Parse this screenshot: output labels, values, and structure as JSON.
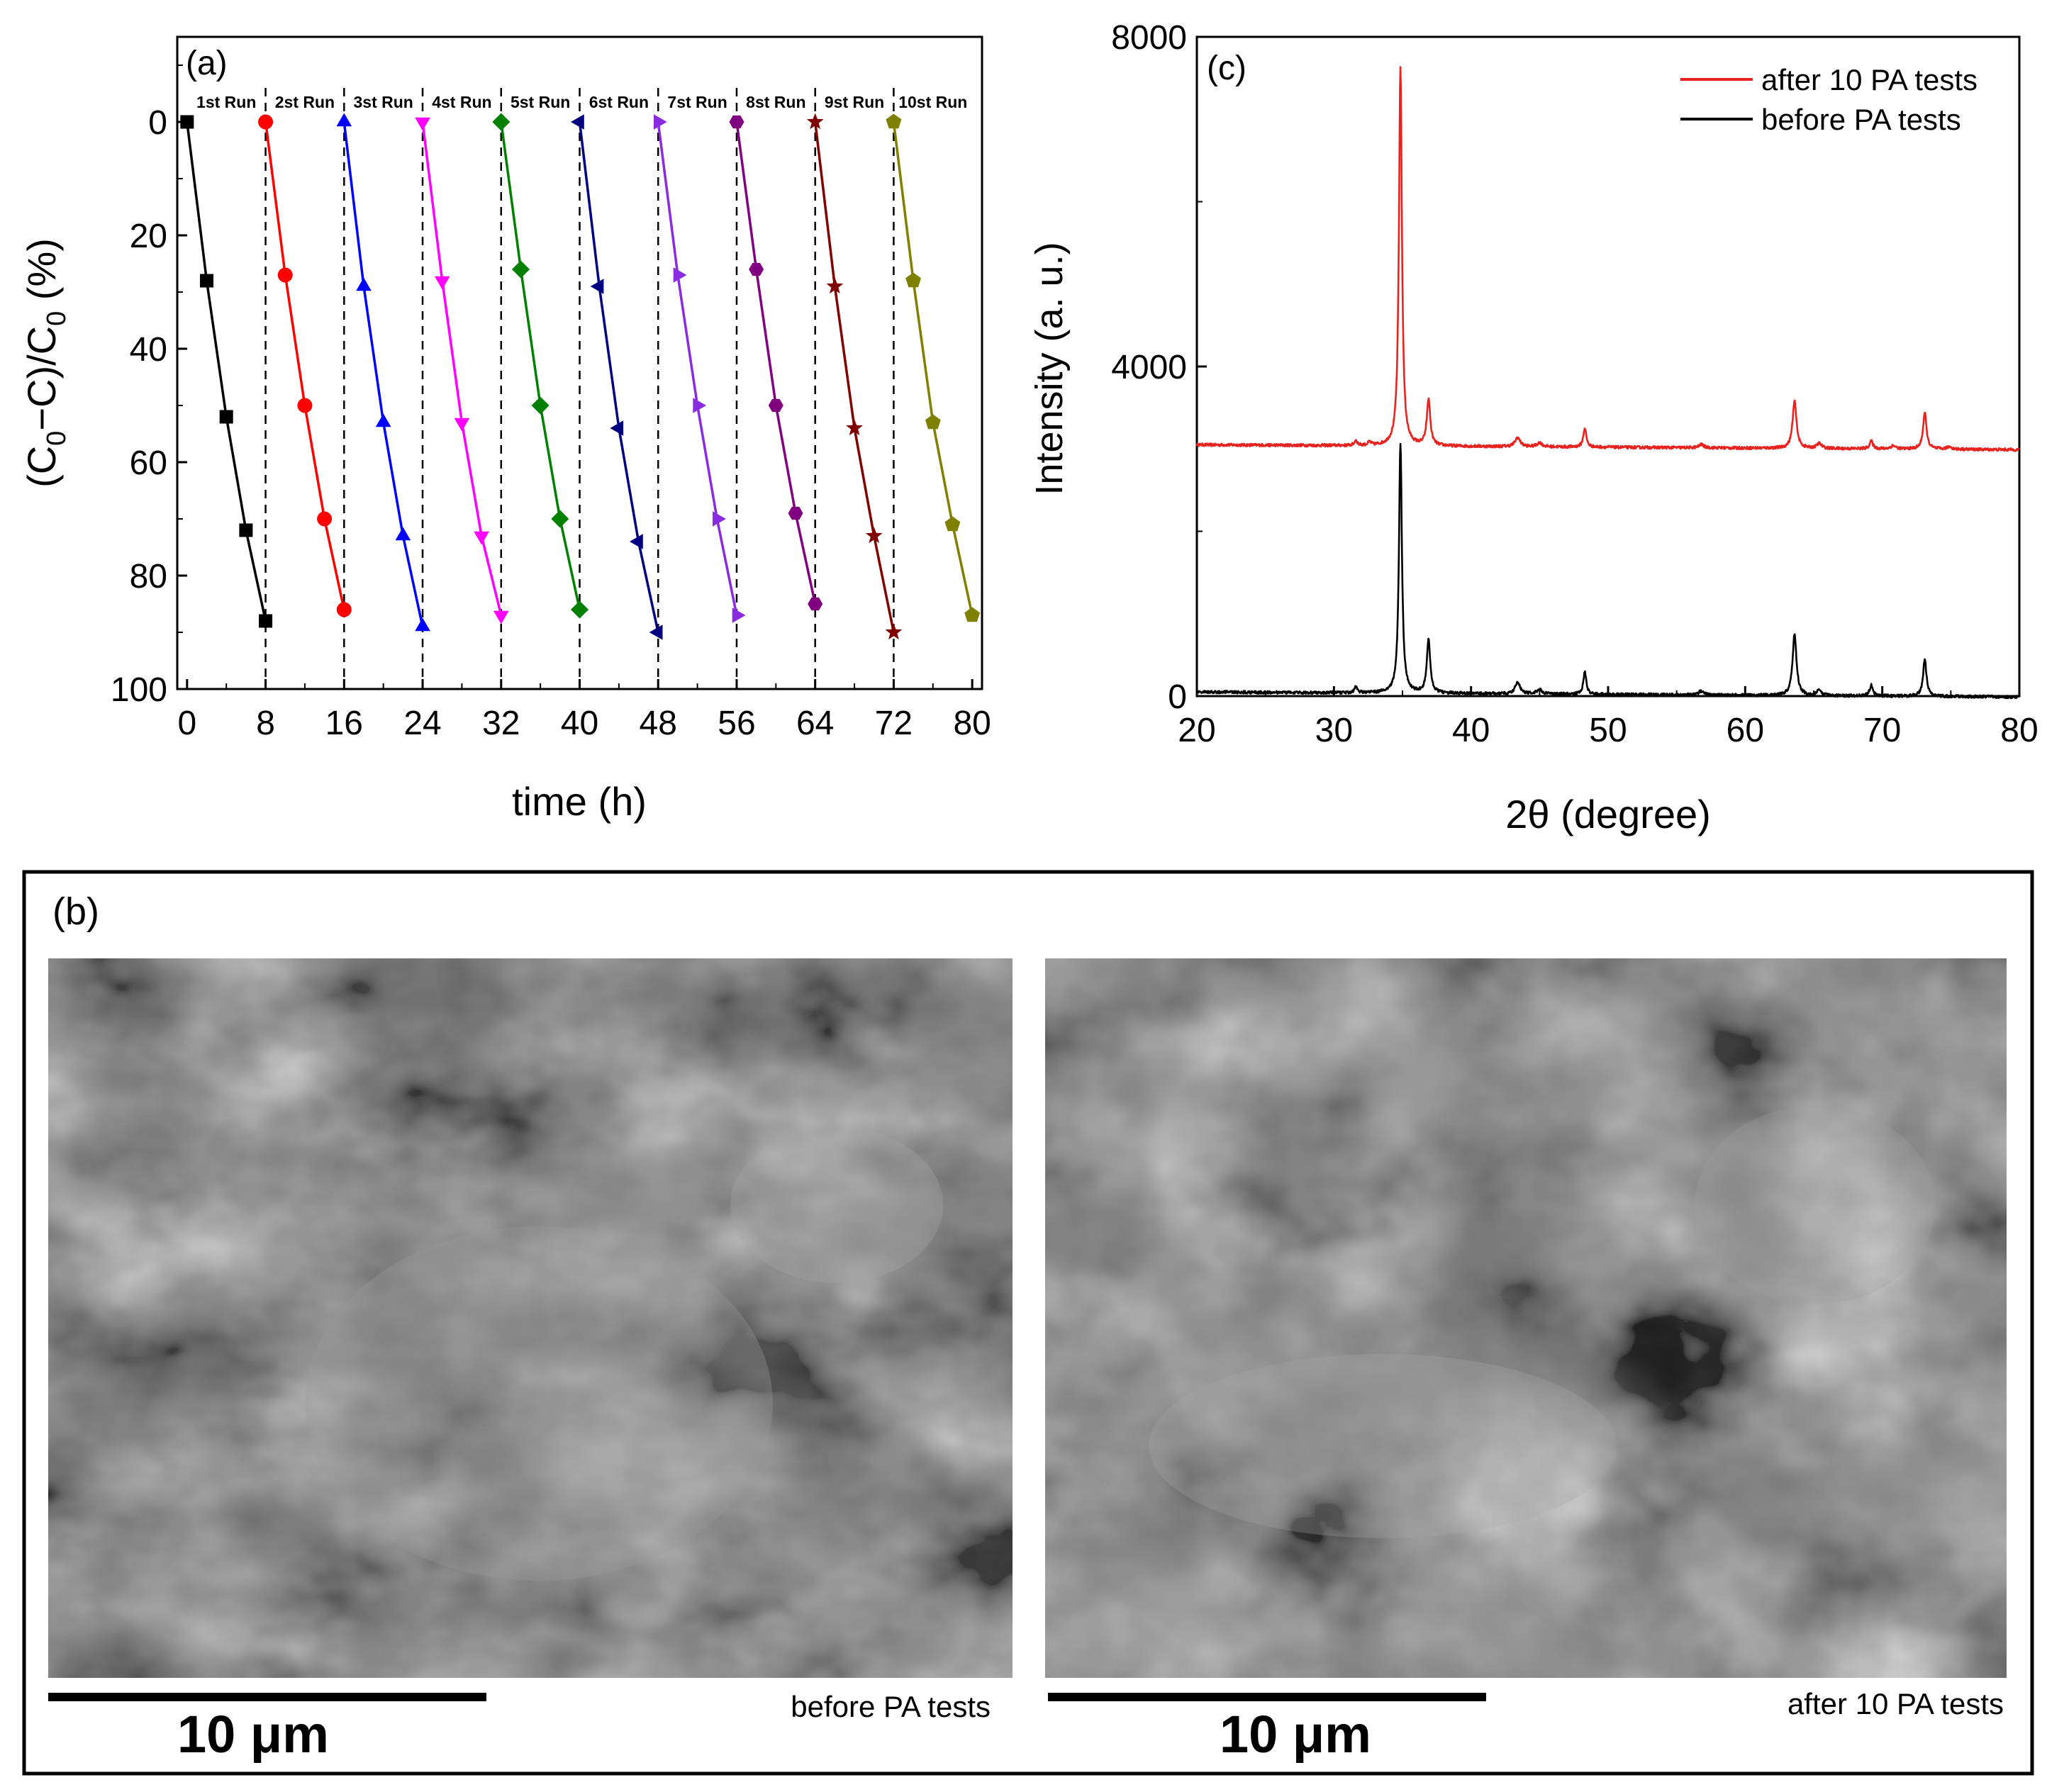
{
  "panel_a": {
    "label": "(a)",
    "xlabel": "time (h)",
    "ylabel_parts": [
      "(C",
      "0",
      "−C)/C",
      "0",
      " (%)"
    ]
  },
  "panel_b": {
    "label": "(b)",
    "left_caption": "before PA tests",
    "right_caption": "after 10 PA tests",
    "scale_left": "10 μm",
    "scale_right": "10 μm"
  },
  "panel_c": {
    "label": "(c)",
    "xlabel": "2θ (degree)",
    "ylabel": "Intensity (a. u.)"
  },
  "chart_data": [
    {
      "id": "a",
      "type": "line",
      "xlabel": "time (h)",
      "ylabel": "(C0−C)/C0 (%)",
      "xlim": [
        -1,
        81
      ],
      "ylim": [
        100,
        -15
      ],
      "y_inverted": true,
      "xticks": [
        0,
        8,
        16,
        24,
        32,
        40,
        48,
        56,
        64,
        72,
        80
      ],
      "yticks": [
        0,
        20,
        40,
        60,
        80,
        100
      ],
      "dividers": [
        8,
        16,
        24,
        32,
        40,
        48,
        56,
        64,
        72
      ],
      "series": [
        {
          "name": "1st Run",
          "color": "#000000",
          "marker": "square",
          "x": [
            0,
            2,
            4,
            6,
            8
          ],
          "y": [
            0,
            28,
            52,
            72,
            88
          ]
        },
        {
          "name": "2st Run",
          "color": "#ff0000",
          "marker": "circle",
          "x": [
            8,
            10,
            12,
            14,
            16
          ],
          "y": [
            0,
            27,
            50,
            70,
            86
          ]
        },
        {
          "name": "3st Run",
          "color": "#0000ff",
          "marker": "triangle-up",
          "x": [
            16,
            18,
            20,
            22,
            24
          ],
          "y": [
            0,
            29,
            53,
            73,
            89
          ]
        },
        {
          "name": "4st Run",
          "color": "#ff00ff",
          "marker": "triangle-down",
          "x": [
            24,
            26,
            28,
            30,
            32
          ],
          "y": [
            0,
            28,
            53,
            73,
            87
          ]
        },
        {
          "name": "5st Run",
          "color": "#008000",
          "marker": "diamond",
          "x": [
            32,
            34,
            36,
            38,
            40
          ],
          "y": [
            0,
            26,
            50,
            70,
            86
          ]
        },
        {
          "name": "6st Run",
          "color": "#000080",
          "marker": "triangle-left",
          "x": [
            40,
            42,
            44,
            46,
            48
          ],
          "y": [
            0,
            29,
            54,
            74,
            90
          ]
        },
        {
          "name": "7st Run",
          "color": "#8a2be2",
          "marker": "triangle-right",
          "x": [
            48,
            50,
            52,
            54,
            56
          ],
          "y": [
            0,
            27,
            50,
            70,
            87
          ]
        },
        {
          "name": "8st Run",
          "color": "#800080",
          "marker": "hexagon",
          "x": [
            56,
            58,
            60,
            62,
            64
          ],
          "y": [
            0,
            26,
            50,
            69,
            85
          ]
        },
        {
          "name": "9st Run",
          "color": "#800000",
          "marker": "star",
          "x": [
            64,
            66,
            68,
            70,
            72
          ],
          "y": [
            0,
            29,
            54,
            73,
            90
          ]
        },
        {
          "name": "10st Run",
          "color": "#808000",
          "marker": "pentagon",
          "x": [
            72,
            74,
            76,
            78,
            80
          ],
          "y": [
            0,
            28,
            53,
            71,
            87
          ]
        }
      ]
    },
    {
      "id": "c",
      "type": "line",
      "xlabel": "2θ (degree)",
      "ylabel": "Intensity (a. u.)",
      "xlim": [
        20,
        80
      ],
      "ylim": [
        0,
        8000
      ],
      "xticks": [
        20,
        30,
        40,
        50,
        60,
        70,
        80
      ],
      "yticks": [
        0,
        4000,
        8000
      ],
      "legend_position": "top-right",
      "series": [
        {
          "name": "after 10 PA tests",
          "color": "#e8231f",
          "baseline": 3050,
          "peaks": [
            [
              31.6,
              60,
              0.12
            ],
            [
              32.6,
              40,
              0.12
            ],
            [
              34.85,
              4580,
              0.13
            ],
            [
              36.9,
              560,
              0.15
            ],
            [
              43.4,
              110,
              0.22
            ],
            [
              45.0,
              50,
              0.2
            ],
            [
              48.3,
              230,
              0.13
            ],
            [
              56.8,
              40,
              0.2
            ],
            [
              63.6,
              570,
              0.17
            ],
            [
              65.4,
              60,
              0.2
            ],
            [
              69.2,
              90,
              0.15
            ],
            [
              70.8,
              40,
              0.2
            ],
            [
              73.1,
              440,
              0.15
            ],
            [
              74.9,
              30,
              0.2
            ]
          ]
        },
        {
          "name": "before PA tests",
          "color": "#000000",
          "baseline": 50,
          "peaks": [
            [
              31.6,
              80,
              0.12
            ],
            [
              34.85,
              3030,
              0.13
            ],
            [
              36.9,
              650,
              0.15
            ],
            [
              43.4,
              140,
              0.22
            ],
            [
              45.0,
              60,
              0.2
            ],
            [
              48.3,
              270,
              0.13
            ],
            [
              56.8,
              50,
              0.2
            ],
            [
              63.6,
              750,
              0.17
            ],
            [
              65.4,
              70,
              0.2
            ],
            [
              69.2,
              130,
              0.15
            ],
            [
              73.1,
              440,
              0.15
            ]
          ]
        }
      ]
    }
  ]
}
